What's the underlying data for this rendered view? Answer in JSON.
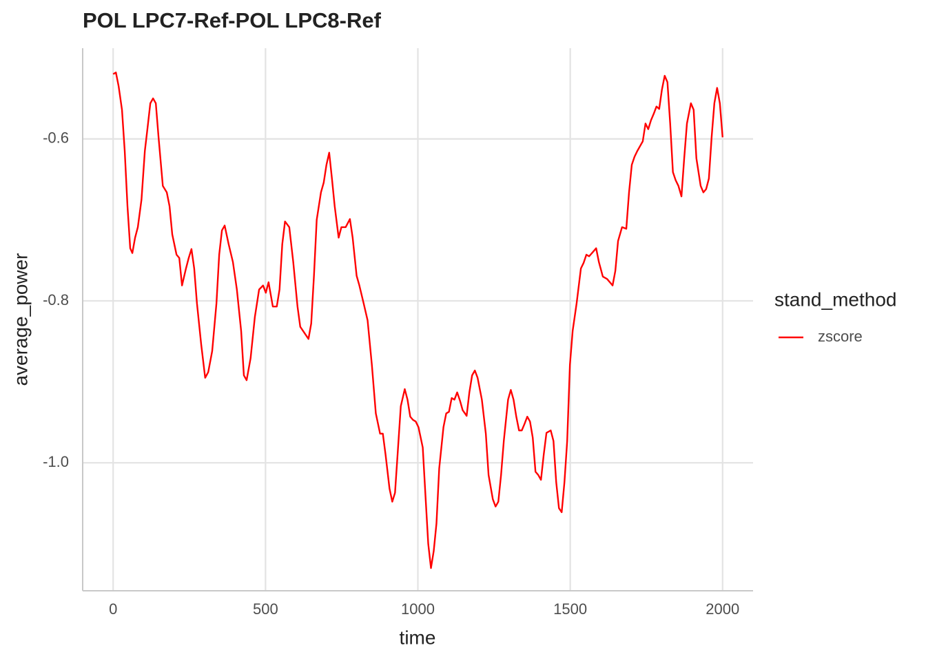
{
  "chart_data": {
    "type": "line",
    "title": "POL LPC7-Ref-POL LPC8-Ref",
    "x_label": "time",
    "y_label": "average_power",
    "legend_title": "stand_method",
    "xlim": [
      -100,
      2100
    ],
    "xticks": [
      0,
      500,
      1000,
      1500,
      2000
    ],
    "ylim": [
      -1.158,
      -0.488
    ],
    "yticks": [
      {
        "value": -1.0,
        "label": "-1.0"
      },
      {
        "value": -0.8,
        "label": "-0.8"
      },
      {
        "value": -0.6,
        "label": "-0.6"
      }
    ],
    "grid": true,
    "x": [
      0,
      9,
      18,
      29,
      38,
      47,
      56,
      63,
      72,
      81,
      93,
      104,
      113,
      122,
      131,
      140,
      149,
      163,
      176,
      185,
      194,
      208,
      217,
      226,
      239,
      248,
      257,
      266,
      275,
      289,
      302,
      312,
      325,
      339,
      348,
      357,
      366,
      379,
      393,
      406,
      420,
      429,
      438,
      451,
      465,
      479,
      492,
      501,
      510,
      524,
      537,
      546,
      555,
      564,
      578,
      591,
      605,
      614,
      623,
      641,
      650,
      659,
      668,
      682,
      691,
      700,
      709,
      718,
      727,
      740,
      749,
      763,
      777,
      786,
      799,
      808,
      822,
      835,
      849,
      862,
      876,
      885,
      894,
      907,
      916,
      925,
      935,
      944,
      957,
      966,
      975,
      984,
      993,
      1002,
      1016,
      1025,
      1034,
      1043,
      1052,
      1061,
      1070,
      1084,
      1093,
      1102,
      1111,
      1120,
      1129,
      1138,
      1147,
      1160,
      1169,
      1178,
      1187,
      1196,
      1210,
      1223,
      1232,
      1246,
      1255,
      1264,
      1273,
      1282,
      1296,
      1305,
      1314,
      1323,
      1332,
      1341,
      1350,
      1359,
      1368,
      1377,
      1386,
      1395,
      1404,
      1413,
      1422,
      1436,
      1445,
      1454,
      1463,
      1472,
      1481,
      1490,
      1499,
      1508,
      1521,
      1535,
      1544,
      1553,
      1562,
      1576,
      1585,
      1594,
      1607,
      1621,
      1630,
      1639,
      1648,
      1657,
      1670,
      1684,
      1693,
      1702,
      1711,
      1720,
      1729,
      1738,
      1747,
      1756,
      1765,
      1774,
      1783,
      1792,
      1801,
      1810,
      1819,
      1828,
      1837,
      1846,
      1855,
      1865,
      1874,
      1883,
      1896,
      1905,
      1914,
      1928,
      1937,
      1946,
      1955,
      1964,
      1973,
      1982,
      1991,
      2000
    ],
    "series": [
      {
        "name": "zscore",
        "color": "#ff0000",
        "values": [
          -0.52,
          -0.518,
          -0.535,
          -0.564,
          -0.615,
          -0.683,
          -0.735,
          -0.741,
          -0.722,
          -0.709,
          -0.675,
          -0.615,
          -0.586,
          -0.556,
          -0.55,
          -0.556,
          -0.598,
          -0.658,
          -0.666,
          -0.683,
          -0.718,
          -0.743,
          -0.747,
          -0.781,
          -0.76,
          -0.747,
          -0.736,
          -0.76,
          -0.803,
          -0.854,
          -0.895,
          -0.888,
          -0.862,
          -0.803,
          -0.743,
          -0.713,
          -0.707,
          -0.73,
          -0.752,
          -0.786,
          -0.837,
          -0.892,
          -0.898,
          -0.871,
          -0.82,
          -0.786,
          -0.781,
          -0.79,
          -0.777,
          -0.807,
          -0.807,
          -0.786,
          -0.73,
          -0.702,
          -0.709,
          -0.752,
          -0.807,
          -0.832,
          -0.837,
          -0.847,
          -0.828,
          -0.769,
          -0.7,
          -0.666,
          -0.654,
          -0.632,
          -0.617,
          -0.649,
          -0.683,
          -0.722,
          -0.709,
          -0.709,
          -0.699,
          -0.722,
          -0.769,
          -0.781,
          -0.803,
          -0.824,
          -0.879,
          -0.939,
          -0.964,
          -0.964,
          -0.99,
          -1.032,
          -1.048,
          -1.037,
          -0.981,
          -0.93,
          -0.909,
          -0.922,
          -0.943,
          -0.947,
          -0.949,
          -0.956,
          -0.981,
          -1.041,
          -1.1,
          -1.13,
          -1.109,
          -1.075,
          -1.007,
          -0.956,
          -0.939,
          -0.937,
          -0.92,
          -0.922,
          -0.913,
          -0.923,
          -0.935,
          -0.942,
          -0.913,
          -0.892,
          -0.886,
          -0.895,
          -0.922,
          -0.964,
          -1.015,
          -1.045,
          -1.054,
          -1.048,
          -1.015,
          -0.973,
          -0.922,
          -0.91,
          -0.922,
          -0.943,
          -0.96,
          -0.96,
          -0.952,
          -0.943,
          -0.949,
          -0.969,
          -1.011,
          -1.015,
          -1.021,
          -0.99,
          -0.963,
          -0.96,
          -0.973,
          -1.024,
          -1.056,
          -1.061,
          -1.024,
          -0.973,
          -0.879,
          -0.837,
          -0.803,
          -0.76,
          -0.753,
          -0.743,
          -0.745,
          -0.739,
          -0.735,
          -0.752,
          -0.77,
          -0.773,
          -0.777,
          -0.781,
          -0.763,
          -0.726,
          -0.709,
          -0.711,
          -0.666,
          -0.632,
          -0.622,
          -0.615,
          -0.609,
          -0.603,
          -0.581,
          -0.588,
          -0.577,
          -0.569,
          -0.56,
          -0.563,
          -0.539,
          -0.522,
          -0.53,
          -0.581,
          -0.641,
          -0.651,
          -0.658,
          -0.671,
          -0.624,
          -0.581,
          -0.556,
          -0.564,
          -0.624,
          -0.658,
          -0.666,
          -0.662,
          -0.649,
          -0.598,
          -0.556,
          -0.537,
          -0.556,
          -0.598
        ]
      }
    ]
  }
}
